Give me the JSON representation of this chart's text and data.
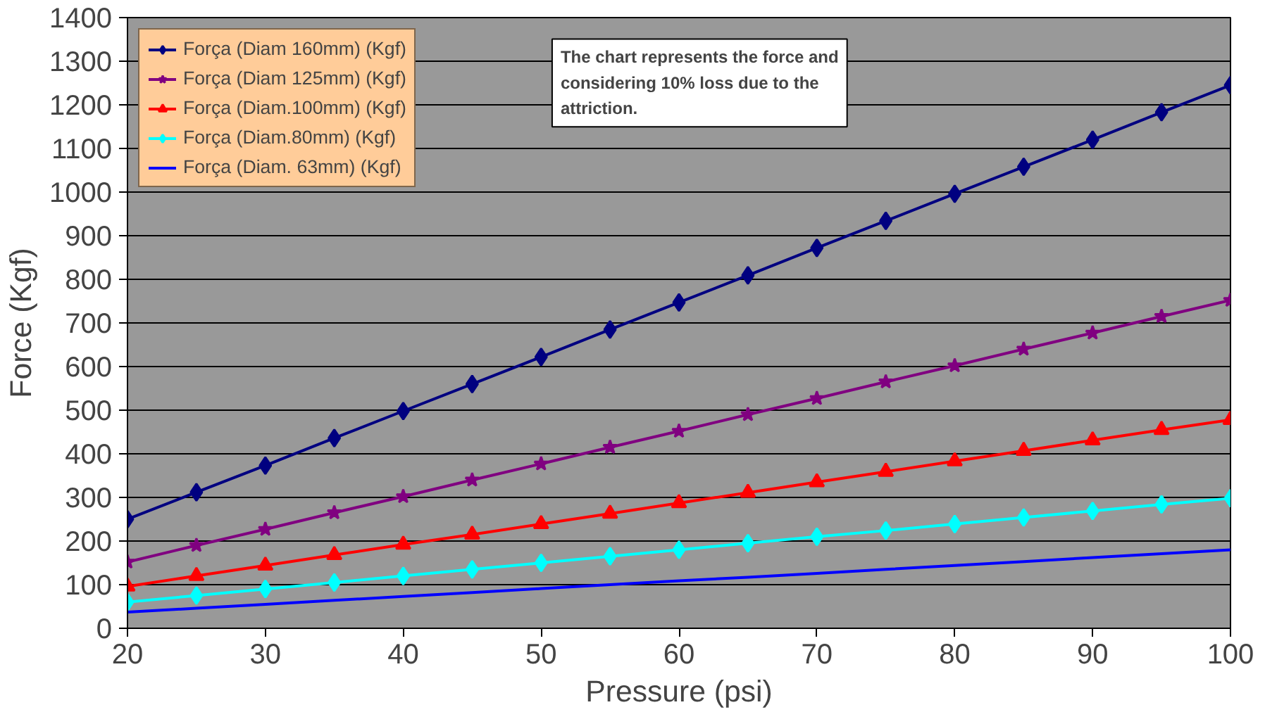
{
  "chart_data": {
    "type": "line",
    "xlabel": "Pressure (psi)",
    "ylabel": "Force (Kgf)",
    "x": [
      20,
      25,
      30,
      35,
      40,
      45,
      50,
      55,
      60,
      65,
      70,
      75,
      80,
      85,
      90,
      95,
      100
    ],
    "xlim": [
      20,
      100
    ],
    "xticks": [
      20,
      30,
      40,
      50,
      60,
      70,
      80,
      90,
      100
    ],
    "ylim": [
      0,
      1400
    ],
    "yticks": [
      0,
      100,
      200,
      300,
      400,
      500,
      600,
      700,
      800,
      900,
      1000,
      1100,
      1200,
      1300,
      1400
    ],
    "grid": "y",
    "legend": "top left",
    "line_style": "solid",
    "annotations": [
      "The chart represents the force and considering 10% loss due to the attriction."
    ],
    "series": [
      {
        "name": "Força (Diam 160mm) (Kgf)",
        "color": "#000080",
        "marker": "diamond",
        "values": [
          250,
          312,
          373,
          436,
          498,
          560,
          622,
          685,
          747,
          809,
          872,
          934,
          996,
          1058,
          1120,
          1183,
          1245
        ]
      },
      {
        "name": "Força (Diam 125mm) (Kgf)",
        "color": "#800080",
        "marker": "star",
        "values": [
          152,
          190,
          227,
          265,
          302,
          340,
          377,
          415,
          452,
          490,
          527,
          565,
          602,
          640,
          677,
          715,
          752
        ]
      },
      {
        "name": "Força (Diam.100mm) (Kgf)",
        "color": "#ff0000",
        "marker": "triangle",
        "values": [
          96,
          120,
          144,
          168,
          192,
          215,
          239,
          263,
          287,
          311,
          335,
          359,
          383,
          407,
          431,
          455,
          478
        ]
      },
      {
        "name": "Força (Diam.80mm) (Kgf)",
        "color": "#00ffff",
        "marker": "diamond",
        "values": [
          60,
          75,
          90,
          105,
          120,
          135,
          150,
          165,
          180,
          195,
          210,
          224,
          239,
          254,
          269,
          284,
          298
        ]
      },
      {
        "name": "Força (Diam. 63mm) (Kgf)",
        "color": "#0000ff",
        "marker": "none",
        "values": [
          37,
          46,
          55,
          64,
          73,
          82,
          91,
          100,
          109,
          117,
          126,
          135,
          144,
          153,
          162,
          171,
          180
        ]
      }
    ]
  }
}
